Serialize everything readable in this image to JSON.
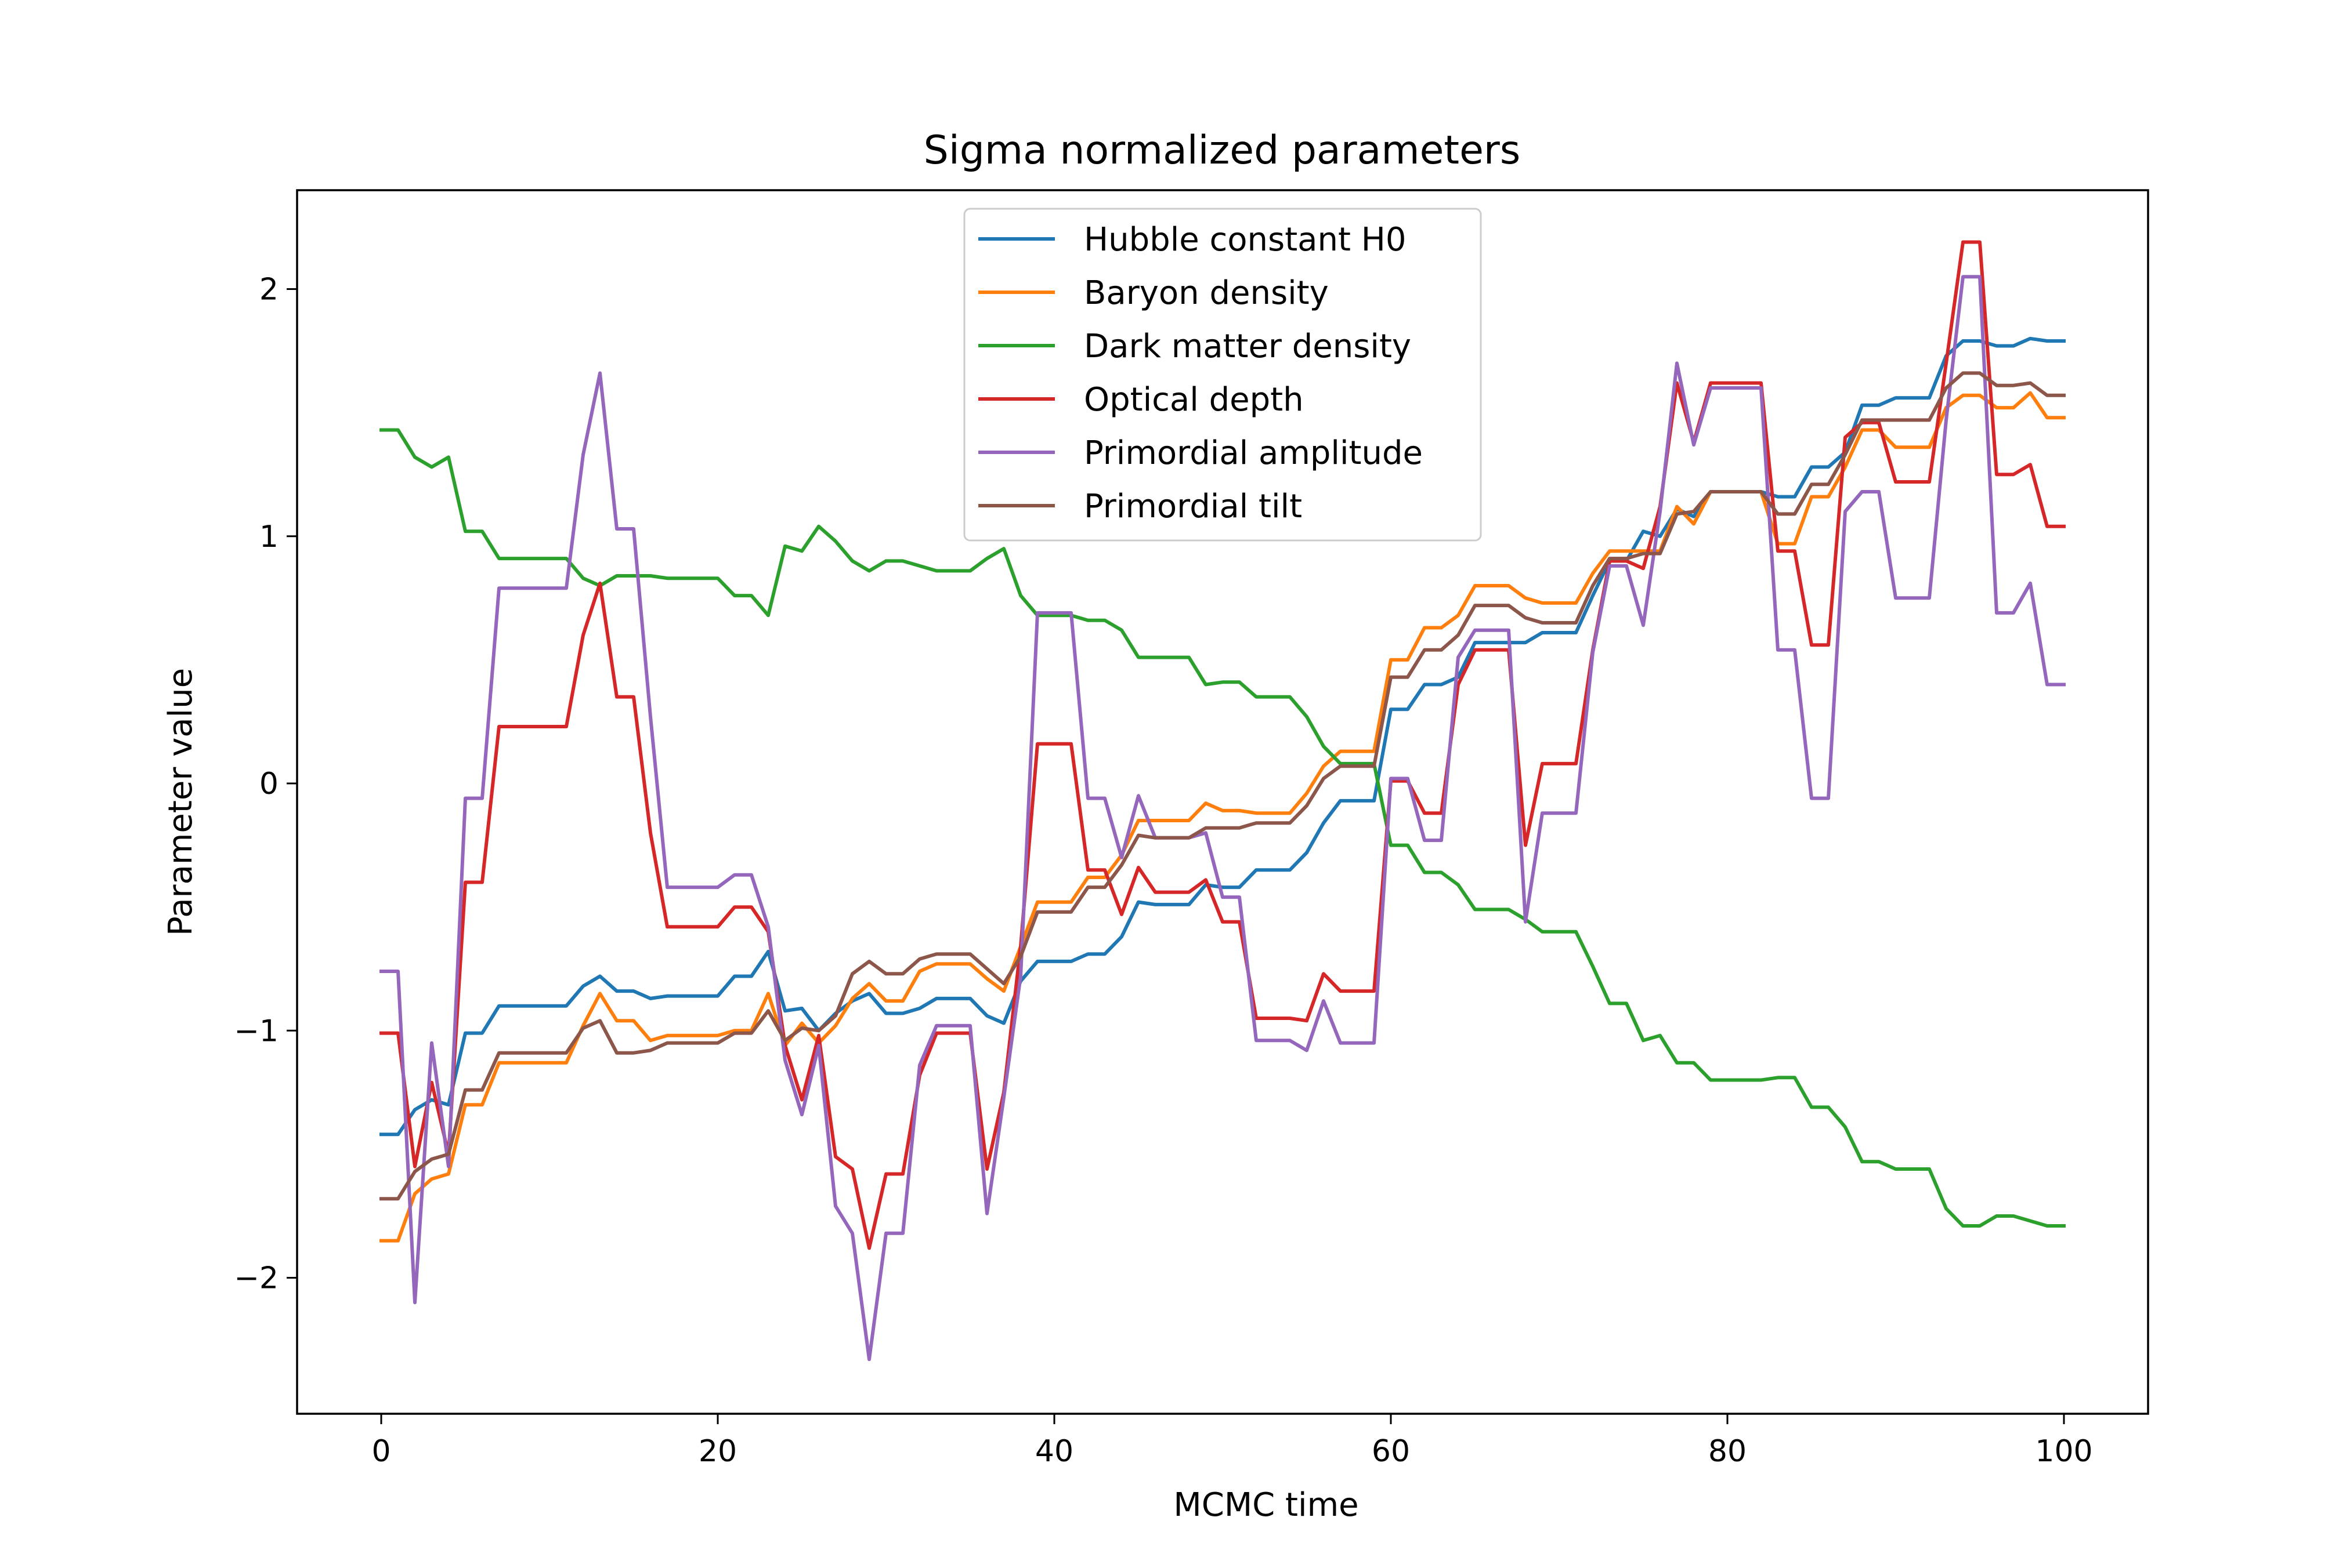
{
  "chart_data": {
    "type": "line",
    "title": "Sigma normalized parameters",
    "xlabel": "MCMC time",
    "ylabel": "Parameter value",
    "xlim": [
      -5,
      105
    ],
    "ylim": [
      -2.55,
      2.4
    ],
    "x_ticks": [
      0,
      20,
      40,
      60,
      80,
      100
    ],
    "x_tick_labels": [
      "0",
      "20",
      "40",
      "60",
      "80",
      "100"
    ],
    "y_ticks": [
      -2,
      -1,
      0,
      1,
      2
    ],
    "y_tick_labels": [
      "−2",
      "−1",
      "0",
      "1",
      "2"
    ],
    "grid": false,
    "legend_position": "upper center",
    "x": [
      0,
      1,
      2,
      3,
      4,
      5,
      6,
      7,
      8,
      9,
      10,
      11,
      12,
      13,
      14,
      15,
      16,
      17,
      18,
      19,
      20,
      21,
      22,
      23,
      24,
      25,
      26,
      27,
      28,
      29,
      30,
      31,
      32,
      33,
      34,
      35,
      36,
      37,
      38,
      39,
      40,
      41,
      42,
      43,
      44,
      45,
      46,
      47,
      48,
      49,
      50,
      51,
      52,
      53,
      54,
      55,
      56,
      57,
      58,
      59,
      60,
      61,
      62,
      63,
      64,
      65,
      66,
      67,
      68,
      69,
      70,
      71,
      72,
      73,
      74,
      75,
      76,
      77,
      78,
      79,
      80,
      81,
      82,
      83,
      84,
      85,
      86,
      87,
      88,
      89,
      90,
      91,
      92,
      93,
      94,
      95,
      96,
      97,
      98,
      99,
      100
    ],
    "series": [
      {
        "name": "Hubble constant H0",
        "color": "#1f77b4",
        "values": [
          -1.42,
          -1.42,
          -1.32,
          -1.28,
          -1.3,
          -1.01,
          -1.01,
          -0.9,
          -0.9,
          -0.9,
          -0.9,
          -0.9,
          -0.82,
          -0.78,
          -0.84,
          -0.84,
          -0.87,
          -0.86,
          -0.86,
          -0.86,
          -0.86,
          -0.78,
          -0.78,
          -0.68,
          -0.92,
          -0.91,
          -1.0,
          -0.93,
          -0.88,
          -0.85,
          -0.93,
          -0.93,
          -0.91,
          -0.87,
          -0.87,
          -0.87,
          -0.94,
          -0.97,
          -0.8,
          -0.72,
          -0.72,
          -0.72,
          -0.69,
          -0.69,
          -0.62,
          -0.48,
          -0.49,
          -0.49,
          -0.49,
          -0.41,
          -0.42,
          -0.42,
          -0.35,
          -0.35,
          -0.35,
          -0.28,
          -0.16,
          -0.07,
          -0.07,
          -0.07,
          0.3,
          0.3,
          0.4,
          0.4,
          0.43,
          0.57,
          0.57,
          0.57,
          0.57,
          0.61,
          0.61,
          0.61,
          0.76,
          0.9,
          0.9,
          1.02,
          1.0,
          1.11,
          1.08,
          1.18,
          1.18,
          1.18,
          1.18,
          1.16,
          1.16,
          1.28,
          1.28,
          1.34,
          1.53,
          1.53,
          1.56,
          1.56,
          1.56,
          1.73,
          1.79,
          1.79,
          1.77,
          1.77,
          1.8,
          1.79,
          1.79
        ]
      },
      {
        "name": "Baryon density",
        "color": "#ff7f0e",
        "values": [
          -1.85,
          -1.85,
          -1.66,
          -1.6,
          -1.58,
          -1.3,
          -1.3,
          -1.13,
          -1.13,
          -1.13,
          -1.13,
          -1.13,
          -0.98,
          -0.85,
          -0.96,
          -0.96,
          -1.04,
          -1.02,
          -1.02,
          -1.02,
          -1.02,
          -1.0,
          -1.0,
          -0.85,
          -1.06,
          -0.97,
          -1.05,
          -0.98,
          -0.87,
          -0.81,
          -0.88,
          -0.88,
          -0.76,
          -0.73,
          -0.73,
          -0.73,
          -0.79,
          -0.84,
          -0.66,
          -0.48,
          -0.48,
          -0.48,
          -0.38,
          -0.38,
          -0.29,
          -0.15,
          -0.15,
          -0.15,
          -0.15,
          -0.08,
          -0.11,
          -0.11,
          -0.12,
          -0.12,
          -0.12,
          -0.04,
          0.07,
          0.13,
          0.13,
          0.13,
          0.5,
          0.5,
          0.63,
          0.63,
          0.68,
          0.8,
          0.8,
          0.8,
          0.75,
          0.73,
          0.73,
          0.73,
          0.85,
          0.94,
          0.94,
          0.94,
          0.94,
          1.12,
          1.05,
          1.18,
          1.18,
          1.18,
          1.18,
          0.97,
          0.97,
          1.16,
          1.16,
          1.28,
          1.43,
          1.43,
          1.36,
          1.36,
          1.36,
          1.52,
          1.57,
          1.57,
          1.52,
          1.52,
          1.58,
          1.48,
          1.48
        ]
      },
      {
        "name": "Dark matter density",
        "color": "#2ca02c",
        "values": [
          1.43,
          1.43,
          1.32,
          1.28,
          1.32,
          1.02,
          1.02,
          0.91,
          0.91,
          0.91,
          0.91,
          0.91,
          0.83,
          0.8,
          0.84,
          0.84,
          0.84,
          0.83,
          0.83,
          0.83,
          0.83,
          0.76,
          0.76,
          0.68,
          0.96,
          0.94,
          1.04,
          0.98,
          0.9,
          0.86,
          0.9,
          0.9,
          0.88,
          0.86,
          0.86,
          0.86,
          0.91,
          0.95,
          0.76,
          0.68,
          0.68,
          0.68,
          0.66,
          0.66,
          0.62,
          0.51,
          0.51,
          0.51,
          0.51,
          0.4,
          0.41,
          0.41,
          0.35,
          0.35,
          0.35,
          0.27,
          0.15,
          0.08,
          0.08,
          0.08,
          -0.25,
          -0.25,
          -0.36,
          -0.36,
          -0.41,
          -0.51,
          -0.51,
          -0.51,
          -0.55,
          -0.6,
          -0.6,
          -0.6,
          -0.74,
          -0.89,
          -0.89,
          -1.04,
          -1.02,
          -1.13,
          -1.13,
          -1.2,
          -1.2,
          -1.2,
          -1.2,
          -1.19,
          -1.19,
          -1.31,
          -1.31,
          -1.39,
          -1.53,
          -1.53,
          -1.56,
          -1.56,
          -1.56,
          -1.72,
          -1.79,
          -1.79,
          -1.75,
          -1.75,
          -1.77,
          -1.79,
          -1.79
        ]
      },
      {
        "name": "Optical depth",
        "color": "#d62728",
        "values": [
          -1.01,
          -1.01,
          -1.55,
          -1.21,
          -1.5,
          -0.4,
          -0.4,
          0.23,
          0.23,
          0.23,
          0.23,
          0.23,
          0.6,
          0.81,
          0.35,
          0.35,
          -0.2,
          -0.58,
          -0.58,
          -0.58,
          -0.58,
          -0.5,
          -0.5,
          -0.6,
          -1.06,
          -1.28,
          -1.02,
          -1.51,
          -1.56,
          -1.88,
          -1.58,
          -1.58,
          -1.18,
          -1.01,
          -1.01,
          -1.01,
          -1.56,
          -1.25,
          -0.66,
          0.16,
          0.16,
          0.16,
          -0.35,
          -0.35,
          -0.53,
          -0.34,
          -0.44,
          -0.44,
          -0.44,
          -0.39,
          -0.56,
          -0.56,
          -0.95,
          -0.95,
          -0.95,
          -0.96,
          -0.77,
          -0.84,
          -0.84,
          -0.84,
          0.01,
          0.01,
          -0.12,
          -0.12,
          0.4,
          0.54,
          0.54,
          0.54,
          -0.25,
          0.08,
          0.08,
          0.08,
          0.54,
          0.9,
          0.9,
          0.87,
          1.12,
          1.62,
          1.38,
          1.62,
          1.62,
          1.62,
          1.62,
          0.94,
          0.94,
          0.56,
          0.56,
          1.4,
          1.46,
          1.46,
          1.22,
          1.22,
          1.22,
          1.7,
          2.19,
          2.19,
          1.25,
          1.25,
          1.29,
          1.04,
          1.04
        ]
      },
      {
        "name": "Primordial amplitude",
        "color": "#9467bd",
        "values": [
          -0.76,
          -0.76,
          -2.1,
          -1.05,
          -1.55,
          -0.06,
          -0.06,
          0.79,
          0.79,
          0.79,
          0.79,
          0.79,
          1.33,
          1.66,
          1.03,
          1.03,
          0.27,
          -0.42,
          -0.42,
          -0.42,
          -0.42,
          -0.37,
          -0.37,
          -0.58,
          -1.12,
          -1.34,
          -1.06,
          -1.71,
          -1.82,
          -2.33,
          -1.82,
          -1.82,
          -1.14,
          -0.98,
          -0.98,
          -0.98,
          -1.74,
          -1.27,
          -0.78,
          0.69,
          0.69,
          0.69,
          -0.06,
          -0.06,
          -0.3,
          -0.05,
          -0.22,
          -0.22,
          -0.22,
          -0.2,
          -0.46,
          -0.46,
          -1.04,
          -1.04,
          -1.04,
          -1.08,
          -0.88,
          -1.05,
          -1.05,
          -1.05,
          0.02,
          0.02,
          -0.23,
          -0.23,
          0.51,
          0.62,
          0.62,
          0.62,
          -0.56,
          -0.12,
          -0.12,
          -0.12,
          0.53,
          0.88,
          0.88,
          0.64,
          1.1,
          1.7,
          1.37,
          1.6,
          1.6,
          1.6,
          1.6,
          0.54,
          0.54,
          -0.06,
          -0.06,
          1.1,
          1.18,
          1.18,
          0.75,
          0.75,
          0.75,
          1.47,
          2.05,
          2.05,
          0.69,
          0.69,
          0.81,
          0.4,
          0.4
        ]
      },
      {
        "name": "Primordial tilt",
        "color": "#8c564b",
        "values": [
          -1.68,
          -1.68,
          -1.57,
          -1.52,
          -1.5,
          -1.24,
          -1.24,
          -1.09,
          -1.09,
          -1.09,
          -1.09,
          -1.09,
          -0.99,
          -0.96,
          -1.09,
          -1.09,
          -1.08,
          -1.05,
          -1.05,
          -1.05,
          -1.05,
          -1.01,
          -1.01,
          -0.92,
          -1.04,
          -0.99,
          -1.0,
          -0.94,
          -0.77,
          -0.72,
          -0.77,
          -0.77,
          -0.71,
          -0.69,
          -0.69,
          -0.69,
          -0.75,
          -0.81,
          -0.7,
          -0.52,
          -0.52,
          -0.52,
          -0.42,
          -0.42,
          -0.33,
          -0.21,
          -0.22,
          -0.22,
          -0.22,
          -0.18,
          -0.18,
          -0.18,
          -0.16,
          -0.16,
          -0.16,
          -0.09,
          0.02,
          0.07,
          0.07,
          0.07,
          0.43,
          0.43,
          0.54,
          0.54,
          0.6,
          0.72,
          0.72,
          0.72,
          0.67,
          0.65,
          0.65,
          0.65,
          0.8,
          0.91,
          0.91,
          0.93,
          0.93,
          1.09,
          1.1,
          1.18,
          1.18,
          1.18,
          1.18,
          1.09,
          1.09,
          1.21,
          1.21,
          1.33,
          1.47,
          1.47,
          1.47,
          1.47,
          1.47,
          1.6,
          1.66,
          1.66,
          1.61,
          1.61,
          1.62,
          1.57,
          1.57
        ]
      }
    ]
  }
}
